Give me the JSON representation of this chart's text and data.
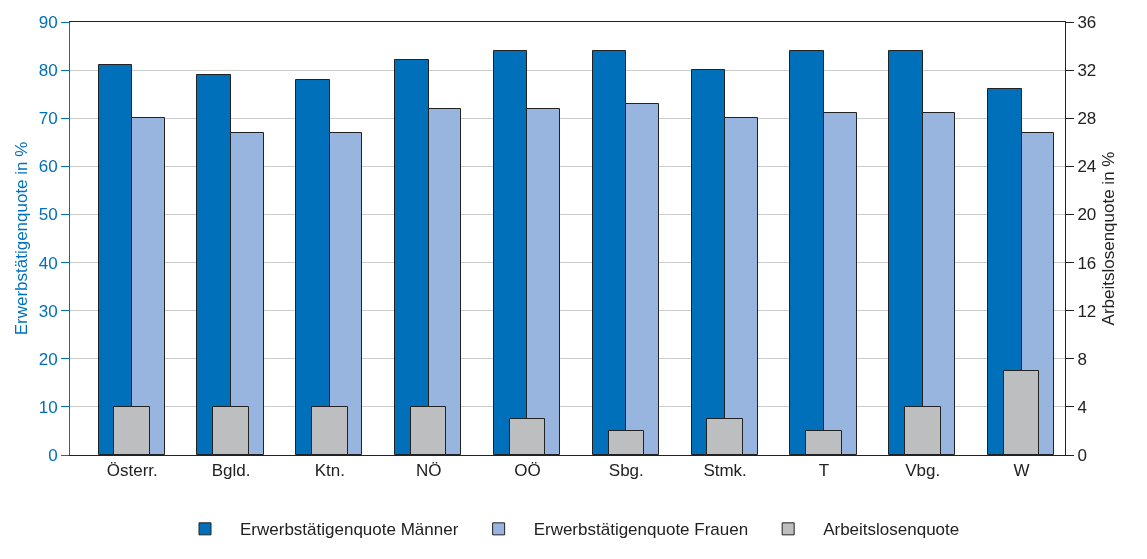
{
  "chart_data": {
    "type": "bar",
    "ylabel": "Erwerbstätigenquote in %",
    "y2label": "Arbeitslosenquote in %",
    "categories": [
      "Österr.",
      "Bgld.",
      "Ktn.",
      "NÖ",
      "OÖ",
      "Sbg.",
      "Stmk.",
      "T",
      "Vbg.",
      "W"
    ],
    "series": [
      {
        "name": "Erwerbstätigenquote Männer",
        "color": "#0070bb",
        "values": [
          81,
          79,
          78,
          82,
          84,
          84,
          80,
          84,
          84,
          76
        ]
      },
      {
        "name": "Erwerbstätigenquote Frauen",
        "color": "#97b5de",
        "values": [
          70,
          67,
          67,
          72,
          72,
          73,
          70,
          71,
          71,
          67
        ]
      },
      {
        "name": "Arbeitslosenquote",
        "color": "#bdbec0",
        "axis": "y2",
        "values": [
          4,
          4,
          4,
          4,
          3,
          2,
          3,
          2,
          4,
          7
        ]
      }
    ],
    "ylim": [
      0,
      90
    ],
    "yticks": [
      0,
      10,
      20,
      30,
      40,
      50,
      60,
      70,
      80,
      90
    ],
    "y2lim": [
      0,
      36
    ],
    "y2ticks": [
      0,
      4,
      8,
      12,
      16,
      20,
      24,
      28,
      32,
      36
    ],
    "grid": "y",
    "legend": "bottom"
  }
}
